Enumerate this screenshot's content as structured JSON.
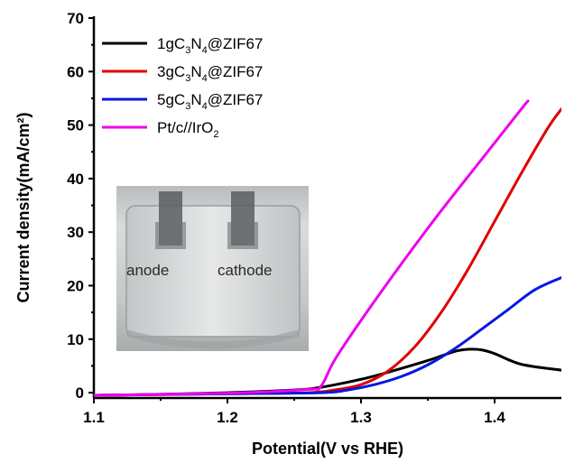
{
  "chart_data": {
    "type": "line",
    "xlabel": "Potential(V vs RHE)",
    "ylabel": "Current density(mA/cm²)",
    "xlim": [
      1.1,
      1.45
    ],
    "ylim": [
      -1,
      70
    ],
    "xticks": [
      "1.1",
      "1.2",
      "1.3",
      "1.4"
    ],
    "xtick_values": [
      1.1,
      1.2,
      1.3,
      1.4
    ],
    "yticks": [
      "0",
      "10",
      "20",
      "30",
      "40",
      "50",
      "60",
      "70"
    ],
    "ytick_values": [
      0,
      10,
      20,
      30,
      40,
      50,
      60,
      70
    ],
    "legend_position": "top-left",
    "series": [
      {
        "name": "1gC3N4@ZIF67",
        "name_parts": [
          [
            "1gC",
            false
          ],
          [
            "3",
            true
          ],
          [
            "N",
            false
          ],
          [
            "4",
            true
          ],
          [
            "@ZIF67",
            false
          ]
        ],
        "color": "#000000",
        "x": [
          1.1,
          1.15,
          1.2,
          1.25,
          1.27,
          1.3,
          1.32,
          1.35,
          1.37,
          1.38,
          1.39,
          1.4,
          1.42,
          1.45
        ],
        "y": [
          -0.5,
          -0.3,
          0.0,
          0.5,
          1.0,
          2.5,
          3.8,
          6.0,
          7.7,
          8.1,
          8.0,
          7.3,
          5.3,
          4.2
        ]
      },
      {
        "name": "3gC3N4@ZIF67",
        "name_parts": [
          [
            "3gC",
            false
          ],
          [
            "3",
            true
          ],
          [
            "N",
            false
          ],
          [
            "4",
            true
          ],
          [
            "@ZIF67",
            false
          ]
        ],
        "color": "#e00000",
        "x": [
          1.1,
          1.2,
          1.26,
          1.28,
          1.3,
          1.32,
          1.34,
          1.36,
          1.38,
          1.4,
          1.42,
          1.44,
          1.45
        ],
        "y": [
          -0.5,
          -0.2,
          0.0,
          0.5,
          1.5,
          4.0,
          8.5,
          15.0,
          23.0,
          32.0,
          41.0,
          49.5,
          53.0
        ]
      },
      {
        "name": "5gC3N4@ZIF67",
        "name_parts": [
          [
            "5gC",
            false
          ],
          [
            "3",
            true
          ],
          [
            "N",
            false
          ],
          [
            "4",
            true
          ],
          [
            "@ZIF67",
            false
          ]
        ],
        "color": "#0018e0",
        "x": [
          1.1,
          1.2,
          1.27,
          1.29,
          1.31,
          1.33,
          1.35,
          1.37,
          1.39,
          1.41,
          1.43,
          1.45
        ],
        "y": [
          -0.5,
          -0.2,
          0.0,
          0.5,
          1.5,
          3.0,
          5.2,
          8.2,
          11.8,
          15.5,
          19.2,
          21.5
        ]
      },
      {
        "name": "Pt/c//IrO2",
        "name_parts": [
          [
            "Pt/c//IrO",
            false
          ],
          [
            "2",
            true
          ]
        ],
        "color": "#ee00ee",
        "x": [
          1.1,
          1.2,
          1.26,
          1.27,
          1.28,
          1.3,
          1.33,
          1.36,
          1.39,
          1.42,
          1.425
        ],
        "y": [
          -0.5,
          -0.1,
          0.6,
          1.2,
          6.0,
          13.5,
          24.0,
          34.0,
          43.5,
          53.0,
          54.5
        ]
      }
    ],
    "inset_labels": [
      "anode",
      "cathode"
    ]
  }
}
